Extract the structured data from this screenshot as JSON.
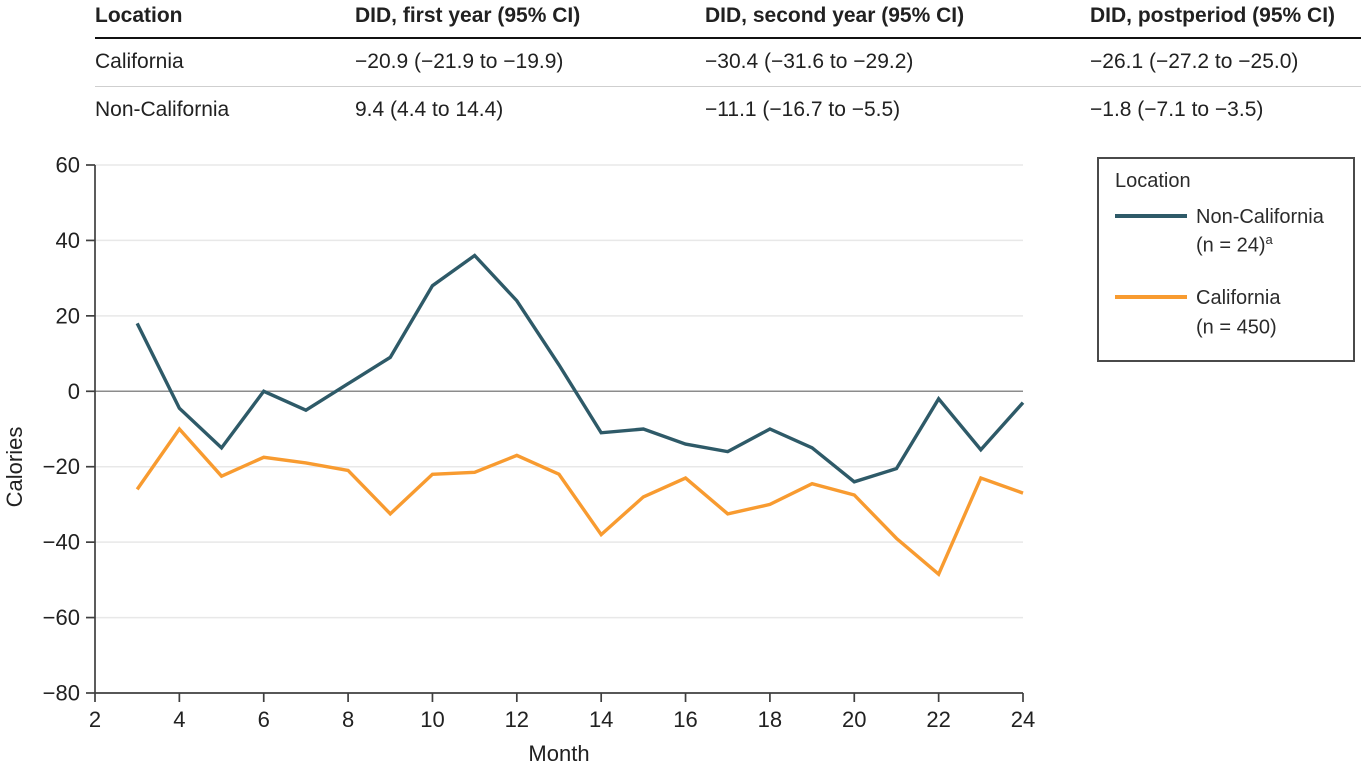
{
  "table": {
    "columns": [
      "Location",
      "DID, first year (95% CI)",
      "DID, second year (95% CI)",
      "DID, postperiod (95% CI)"
    ],
    "rows": [
      [
        "California",
        "−20.9 (−21.9 to −19.9)",
        "−30.4 (−31.6 to −29.2)",
        "−26.1 (−27.2 to −25.0)"
      ],
      [
        "Non-California",
        "9.4 (4.4 to 14.4)",
        "−11.1 (−16.7 to −5.5)",
        "−1.8 (−7.1 to −3.5)"
      ]
    ]
  },
  "legend": {
    "title": "Location",
    "entries": [
      {
        "label": "Non-California",
        "sub": "(n = 24)",
        "superscript": "a",
        "color": "#2E5A68"
      },
      {
        "label": "California",
        "sub": "(n = 450)",
        "superscript": "",
        "color": "#F89B30"
      }
    ]
  },
  "chart_data": {
    "type": "line",
    "title": "",
    "xlabel": "Month",
    "ylabel": "Calories",
    "xlim": [
      2,
      24
    ],
    "ylim": [
      -80,
      60
    ],
    "x_ticks": [
      2,
      4,
      6,
      8,
      10,
      12,
      14,
      16,
      18,
      20,
      22,
      24
    ],
    "y_ticks": [
      60,
      40,
      20,
      0,
      -20,
      -40,
      -60,
      -80
    ],
    "grid": true,
    "zero_line": true,
    "legend_position": "outside-right",
    "x": [
      3,
      4,
      5,
      6,
      7,
      8,
      9,
      10,
      11,
      12,
      13,
      14,
      15,
      16,
      17,
      18,
      19,
      20,
      21,
      22,
      23,
      24
    ],
    "series": [
      {
        "name": "California (n = 450)",
        "color": "#F89B30",
        "values": [
          -26,
          -10,
          -22.5,
          -17.5,
          -19,
          -21,
          -32.5,
          -22,
          -21.5,
          -17,
          -22,
          -38,
          -28,
          -23,
          -32.5,
          -30,
          -24.5,
          -27.5,
          -39,
          -48.5,
          -23,
          -27
        ]
      },
      {
        "name": "Non-California (n = 24)",
        "color": "#2E5A68",
        "values": [
          18,
          -4.5,
          -15,
          0,
          -5,
          2,
          9,
          28,
          36,
          24,
          7,
          -11,
          -10,
          -14,
          -16,
          -10,
          -15,
          -24,
          -20.5,
          -2,
          -15.5,
          -3
        ]
      }
    ]
  },
  "colors": {
    "grid": "#e8e8e8",
    "zero_line": "#8c8c8c",
    "axis": "#3f3f3f",
    "text": "#212121"
  }
}
